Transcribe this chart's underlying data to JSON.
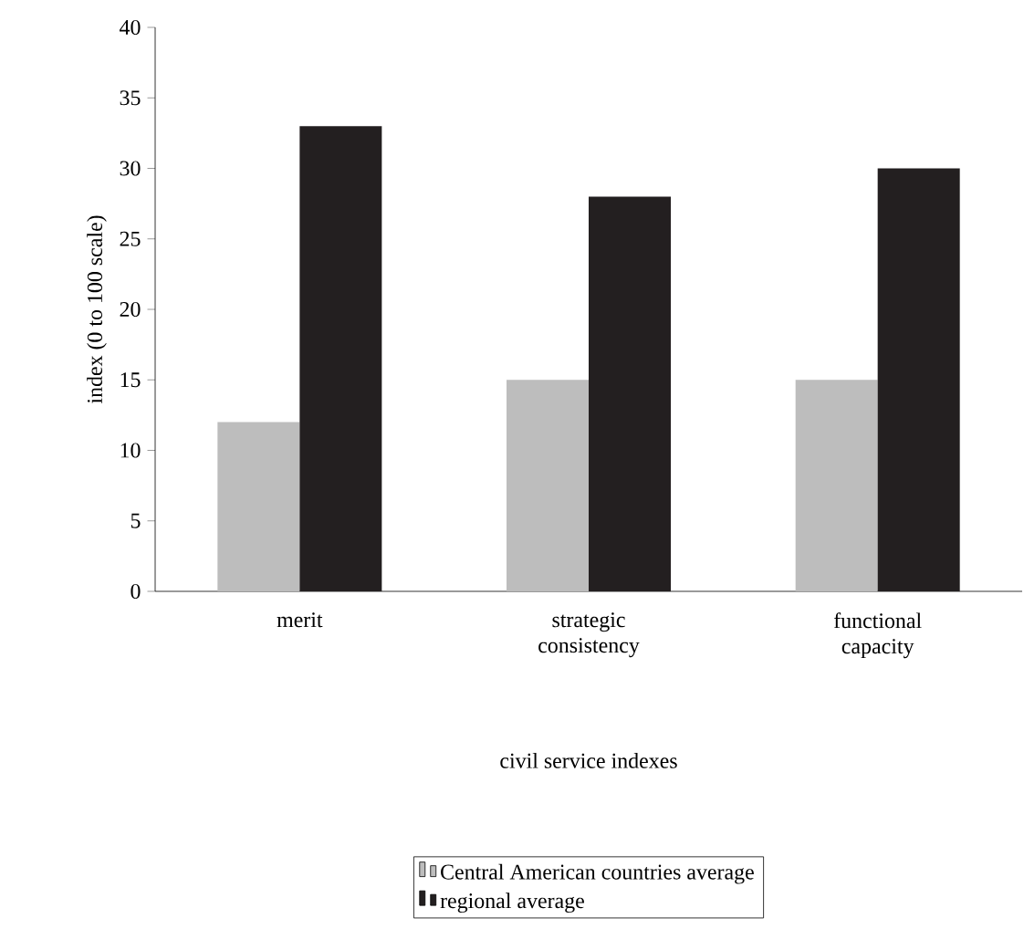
{
  "chart_data": {
    "type": "bar",
    "xlabel": "civil service indexes",
    "ylabel": "index (0 to 100 scale)",
    "categories": [
      "merit",
      "strategic consistency",
      "functional capacity"
    ],
    "series": [
      {
        "name": "Central American countries average",
        "color": "#bdbdbd",
        "values": [
          12,
          15,
          15
        ]
      },
      {
        "name": "regional average",
        "color": "#231f20",
        "values": [
          33,
          28,
          30
        ]
      }
    ],
    "ylim": [
      0,
      40
    ],
    "yticks": [
      0,
      5,
      10,
      15,
      20,
      25,
      30,
      35,
      40
    ],
    "grid": false,
    "legend": "bottom"
  }
}
